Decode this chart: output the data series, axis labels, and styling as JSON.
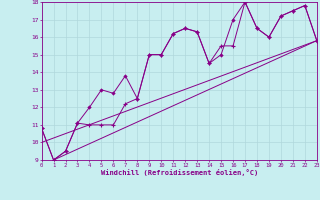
{
  "xlabel": "Windchill (Refroidissement éolien,°C)",
  "xlim": [
    0,
    23
  ],
  "ylim": [
    9,
    18
  ],
  "xticks": [
    0,
    1,
    2,
    3,
    4,
    5,
    6,
    7,
    8,
    9,
    10,
    11,
    12,
    13,
    14,
    15,
    16,
    17,
    18,
    19,
    20,
    21,
    22,
    23
  ],
  "yticks": [
    9,
    10,
    11,
    12,
    13,
    14,
    15,
    16,
    17,
    18
  ],
  "bg_color": "#c8eef0",
  "line_color": "#880088",
  "grid_color": "#b0d8dc",
  "line1_x": [
    0,
    1,
    2,
    3,
    4,
    5,
    6,
    7,
    8,
    9,
    10,
    11,
    12,
    13,
    14,
    15,
    16,
    17,
    18,
    19,
    20,
    21,
    22,
    23
  ],
  "line1_y": [
    10.8,
    9.0,
    9.5,
    11.1,
    12.0,
    13.0,
    12.8,
    13.8,
    12.5,
    15.0,
    15.0,
    16.2,
    16.5,
    16.3,
    14.5,
    15.0,
    17.0,
    18.0,
    16.5,
    16.0,
    17.2,
    17.5,
    17.8,
    15.8
  ],
  "line2_x": [
    0,
    1,
    2,
    3,
    4,
    5,
    6,
    7,
    8,
    9,
    10,
    11,
    12,
    13,
    14,
    15,
    16,
    17,
    18,
    19,
    20,
    21,
    22,
    23
  ],
  "line2_y": [
    10.8,
    9.0,
    9.5,
    11.1,
    11.0,
    11.0,
    11.0,
    12.2,
    12.5,
    15.0,
    15.0,
    16.2,
    16.5,
    16.3,
    14.5,
    15.5,
    15.5,
    18.0,
    16.5,
    16.0,
    17.2,
    17.5,
    17.8,
    15.8
  ],
  "regline1_x": [
    0,
    23
  ],
  "regline1_y": [
    10.0,
    15.8
  ],
  "regline2_x": [
    1,
    23
  ],
  "regline2_y": [
    9.0,
    15.8
  ]
}
